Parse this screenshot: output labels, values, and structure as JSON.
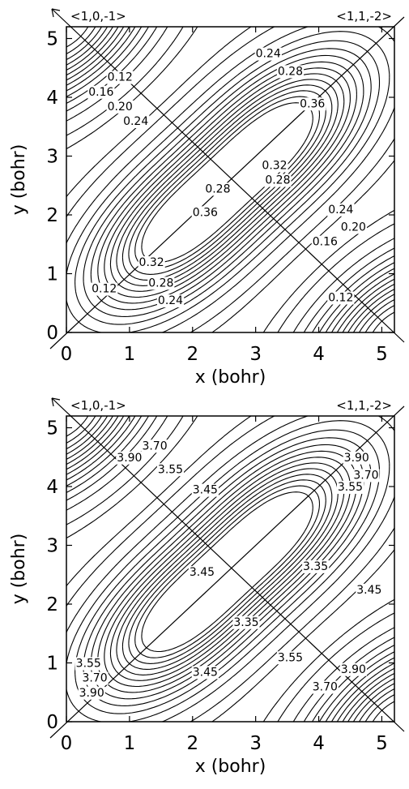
{
  "chart_data": [
    {
      "type": "contour",
      "panel": "top",
      "xlabel": "x (bohr)",
      "ylabel": "y (bohr)",
      "xlim": [
        0,
        5.2
      ],
      "ylim": [
        0,
        5.2
      ],
      "xticks": [
        "0",
        "1",
        "2",
        "3",
        "4",
        "5"
      ],
      "yticks": [
        "0",
        "1",
        "2",
        "3",
        "4",
        "5"
      ],
      "direction_labels": [
        "<1,0,-1>",
        "<1,1,-2>"
      ],
      "extrema": [
        {
          "x": 1.7,
          "y": 1.7,
          "kind": "max"
        },
        {
          "x": 3.4,
          "y": 3.4,
          "kind": "max"
        },
        {
          "x": 0.0,
          "y": 5.2,
          "kind": "min"
        },
        {
          "x": 5.2,
          "y": 0.0,
          "kind": "min"
        }
      ],
      "contour_labels": [
        {
          "text": "0.12",
          "x": 0.85,
          "y": 4.35
        },
        {
          "text": "0.16",
          "x": 0.55,
          "y": 4.1
        },
        {
          "text": "0.20",
          "x": 0.85,
          "y": 3.85
        },
        {
          "text": "0.24",
          "x": 1.1,
          "y": 3.6
        },
        {
          "text": "0.28",
          "x": 2.4,
          "y": 2.45
        },
        {
          "text": "0.36",
          "x": 2.2,
          "y": 2.05
        },
        {
          "text": "0.24",
          "x": 3.2,
          "y": 4.75
        },
        {
          "text": "0.28",
          "x": 3.55,
          "y": 4.45
        },
        {
          "text": "0.36",
          "x": 3.9,
          "y": 3.9
        },
        {
          "text": "0.32",
          "x": 3.3,
          "y": 2.85
        },
        {
          "text": "0.28",
          "x": 3.35,
          "y": 2.6
        },
        {
          "text": "0.24",
          "x": 4.35,
          "y": 2.1
        },
        {
          "text": "0.20",
          "x": 4.55,
          "y": 1.8
        },
        {
          "text": "0.16",
          "x": 4.1,
          "y": 1.55
        },
        {
          "text": "0.12",
          "x": 4.35,
          "y": 0.6
        },
        {
          "text": "0.32",
          "x": 1.35,
          "y": 1.2
        },
        {
          "text": "0.28",
          "x": 1.5,
          "y": 0.85
        },
        {
          "text": "0.24",
          "x": 1.65,
          "y": 0.55
        },
        {
          "text": "0.12",
          "x": 0.6,
          "y": 0.75
        }
      ]
    },
    {
      "type": "contour",
      "panel": "bottom",
      "xlabel": "x (bohr)",
      "ylabel": "y (bohr)",
      "xlim": [
        0,
        5.2
      ],
      "ylim": [
        0,
        5.2
      ],
      "xticks": [
        "0",
        "1",
        "2",
        "3",
        "4",
        "5"
      ],
      "yticks": [
        "0",
        "1",
        "2",
        "3",
        "4",
        "5"
      ],
      "direction_labels": [
        "<1,0,-1>",
        "<1,1,-2>"
      ],
      "extrema": [
        {
          "x": 1.7,
          "y": 1.7,
          "kind": "min"
        },
        {
          "x": 3.4,
          "y": 3.4,
          "kind": "min"
        },
        {
          "x": 0.0,
          "y": 5.2,
          "kind": "max"
        },
        {
          "x": 5.2,
          "y": 0.0,
          "kind": "max"
        }
      ],
      "contour_labels": [
        {
          "text": "3.90",
          "x": 1.0,
          "y": 4.5
        },
        {
          "text": "3.70",
          "x": 1.4,
          "y": 4.7
        },
        {
          "text": "3.55",
          "x": 1.65,
          "y": 4.3
        },
        {
          "text": "3.45",
          "x": 2.2,
          "y": 3.95
        },
        {
          "text": "3.45",
          "x": 2.15,
          "y": 2.55
        },
        {
          "text": "3.35",
          "x": 2.85,
          "y": 1.7
        },
        {
          "text": "3.35",
          "x": 3.95,
          "y": 2.65
        },
        {
          "text": "3.45",
          "x": 4.8,
          "y": 2.25
        },
        {
          "text": "3.90",
          "x": 4.6,
          "y": 4.5
        },
        {
          "text": "3.70",
          "x": 4.75,
          "y": 4.2
        },
        {
          "text": "3.55",
          "x": 4.5,
          "y": 4.0
        },
        {
          "text": "3.45",
          "x": 2.2,
          "y": 0.85
        },
        {
          "text": "3.55",
          "x": 3.55,
          "y": 1.1
        },
        {
          "text": "3.70",
          "x": 4.1,
          "y": 0.6
        },
        {
          "text": "3.90",
          "x": 4.55,
          "y": 0.9
        },
        {
          "text": "3.55",
          "x": 0.35,
          "y": 1.0
        },
        {
          "text": "3.70",
          "x": 0.45,
          "y": 0.75
        },
        {
          "text": "3.90",
          "x": 0.4,
          "y": 0.5
        }
      ]
    }
  ]
}
